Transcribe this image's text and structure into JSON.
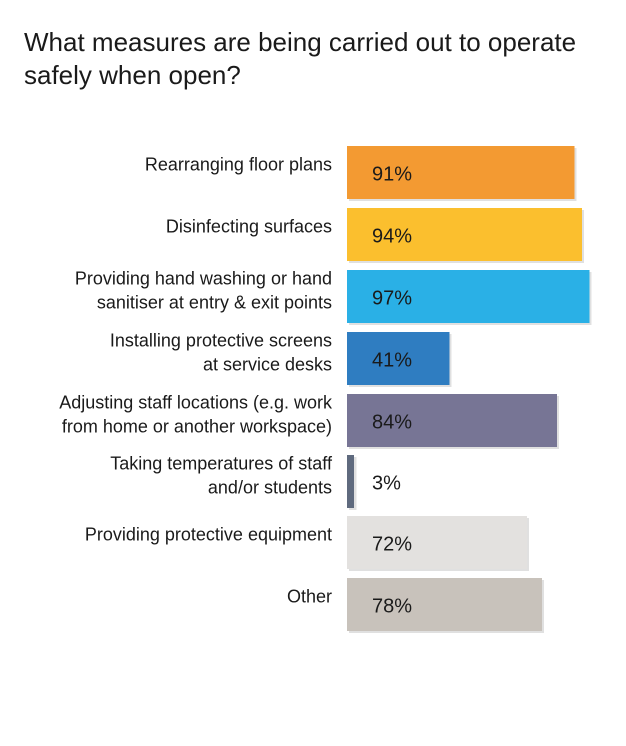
{
  "chart_data": {
    "type": "bar",
    "orientation": "horizontal",
    "title": "What measures are being carried out to operate safely when open?",
    "categories": [
      [
        "Rearranging floor plans"
      ],
      [
        "Disinfecting surfaces"
      ],
      [
        "Providing hand washing or hand",
        "sanitiser at entry & exit points"
      ],
      [
        "Installing protective screens",
        "at service desks"
      ],
      [
        "Adjusting staff locations (e.g. work",
        "from home or another workspace)"
      ],
      [
        "Taking temperatures of staff",
        "and/or students"
      ],
      [
        "Providing protective equipment"
      ],
      [
        "Other"
      ]
    ],
    "values": [
      91,
      94,
      97,
      41,
      84,
      3,
      72,
      78
    ],
    "value_labels": [
      "91%",
      "94%",
      "97%",
      "41%",
      "84%",
      "3%",
      "72%",
      "78%"
    ],
    "colors": [
      "#F39A32",
      "#FBBF2E",
      "#2AB0E6",
      "#2F7DC1",
      "#777595",
      "#5F6A7E",
      "#E3E1DF",
      "#C8C2BB"
    ],
    "xlim": [
      0,
      100
    ],
    "grid": false,
    "legend": "none"
  }
}
